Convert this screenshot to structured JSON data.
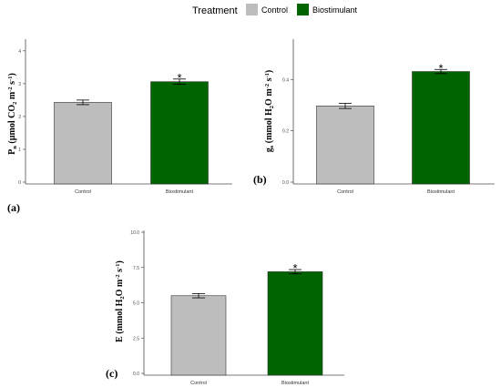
{
  "legend": {
    "title": "Treatment",
    "items": [
      {
        "label": "Control",
        "color": "#bdbdbd"
      },
      {
        "label": "Biostimulant",
        "color": "#006400"
      }
    ]
  },
  "colors": {
    "control": "#bdbdbd",
    "biostimulant": "#006400",
    "axis": "#4d4d4d"
  },
  "panels": [
    {
      "label": "(a)"
    },
    {
      "label": "(b)"
    },
    {
      "label": "(c)"
    }
  ],
  "chart_data": [
    {
      "type": "bar",
      "categories": [
        "Control",
        "Biostimulant"
      ],
      "values": [
        2.43,
        3.06
      ],
      "errors": [
        0.07,
        0.08
      ],
      "significance": [
        "",
        "*"
      ],
      "ylabel": "Pn (µmol CO2 m-2 s-1)",
      "ylabel_parts": [
        [
          "P",
          ""
        ],
        [
          "n",
          "sub"
        ],
        [
          " (µmol CO",
          ""
        ],
        [
          "2",
          "sub"
        ],
        " m",
        [
          "-2",
          "sup"
        ],
        [
          " s",
          ""
        ],
        [
          "-1",
          "sup"
        ],
        [
          ")",
          ""
        ]
      ],
      "ylim": [
        0,
        4.3
      ],
      "yticks": [
        0,
        1,
        2,
        3,
        4
      ],
      "ytick_labels": [
        "0",
        "1",
        "2",
        "3",
        "4"
      ],
      "grid": false
    },
    {
      "type": "bar",
      "categories": [
        "Control",
        "Biostimulant"
      ],
      "values": [
        0.297,
        0.431
      ],
      "errors": [
        0.01,
        0.008
      ],
      "significance": [
        "",
        "*"
      ],
      "ylabel": "gs (mmol H2O m-2 s-1)",
      "ylim": [
        0,
        0.55
      ],
      "yticks": [
        0,
        0.2,
        0.4
      ],
      "ytick_labels": [
        "0.0",
        "0.2",
        "0.4"
      ],
      "grid": false
    },
    {
      "type": "bar",
      "categories": [
        "Control",
        "Biostimulant"
      ],
      "values": [
        5.5,
        7.2
      ],
      "errors": [
        0.15,
        0.15
      ],
      "significance": [
        "",
        "*"
      ],
      "ylabel": "E (mmol H2O m-2 s-1)",
      "ylim": [
        0,
        10
      ],
      "yticks": [
        0,
        2.5,
        5,
        7.5,
        10
      ],
      "ytick_labels": [
        "0.0",
        "2.5",
        "5.0",
        "7.5",
        "10.0"
      ],
      "grid": false
    }
  ]
}
